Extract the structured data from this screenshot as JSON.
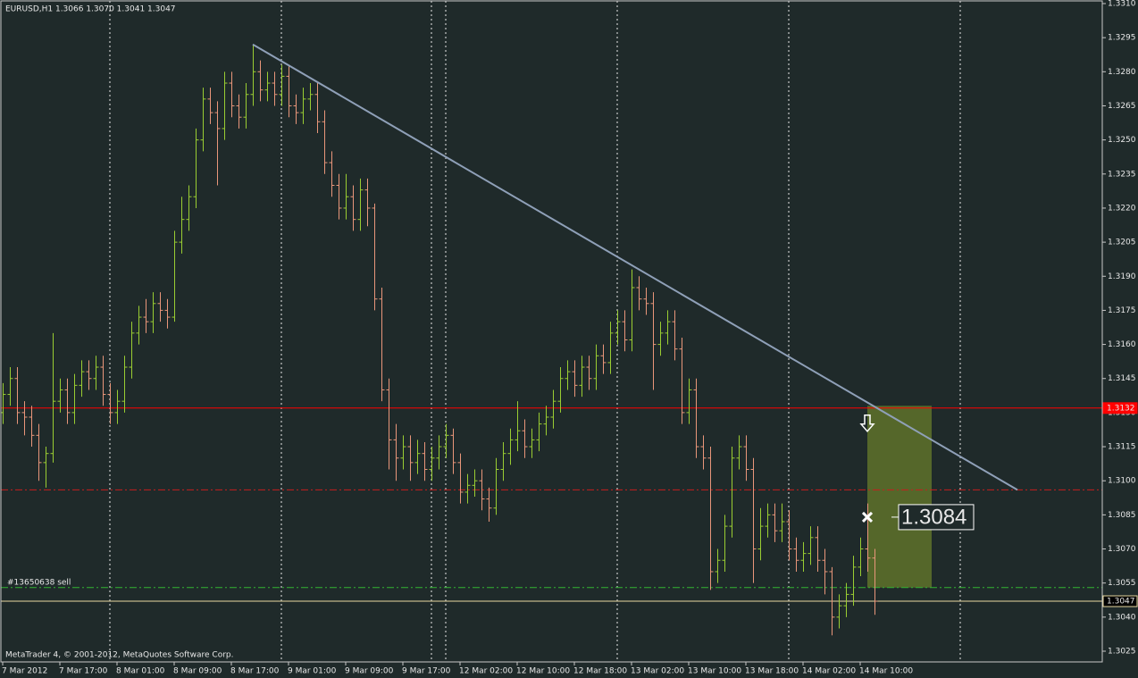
{
  "chart_data": {
    "type": "ohlc",
    "title": "EURUSD,H1  1.3066 1.3070 1.3041 1.3047",
    "footer": "MetaTrader 4, © 2001-2012, MetaQuotes Software Corp.",
    "up_color": "#9acd32",
    "down_color": "#e9967a",
    "grid_color": "#e8e8e8",
    "ylim": [
      1.3025,
      1.331
    ],
    "yticks": [
      {
        "value": 1.331,
        "label": "1.3310"
      },
      1.3295,
      {
        "value": 1.328,
        "label": "1.3280"
      },
      1.3265,
      {
        "value": 1.325,
        "label": "1.3250"
      },
      1.3235,
      {
        "value": 1.322,
        "label": "1.3220"
      },
      1.3205,
      {
        "value": 1.319,
        "label": "1.3190"
      },
      1.3175,
      {
        "value": 1.316,
        "label": "1.3160"
      },
      1.3145,
      {
        "value": 1.313,
        "label": "1.3130"
      },
      1.3115,
      {
        "value": 1.31,
        "label": "1.3100"
      },
      1.3085,
      {
        "value": 1.307,
        "label": "1.3070"
      },
      1.3055,
      {
        "value": 1.304,
        "label": "1.3040"
      },
      1.3025
    ],
    "xgrid": [
      15,
      39,
      60,
      62,
      86,
      110,
      134
    ],
    "categories": [
      "7 Mar 2012",
      null,
      null,
      null,
      null,
      null,
      null,
      null,
      "7 Mar 17:00",
      null,
      null,
      null,
      null,
      null,
      null,
      null,
      "8 Mar 01:00",
      null,
      null,
      null,
      null,
      null,
      null,
      null,
      "8 Mar 09:00",
      null,
      null,
      null,
      null,
      null,
      null,
      null,
      "8 Mar 17:00",
      null,
      null,
      null,
      null,
      null,
      null,
      null,
      "9 Mar 01:00",
      null,
      null,
      null,
      null,
      null,
      null,
      null,
      "9 Mar 09:00",
      null,
      null,
      null,
      null,
      null,
      null,
      null,
      "9 Mar 17:00",
      null,
      null,
      null,
      null,
      null,
      null,
      null,
      "12 Mar 02:00",
      null,
      null,
      null,
      null,
      null,
      null,
      null,
      "12 Mar 10:00",
      null,
      null,
      null,
      null,
      null,
      null,
      null,
      "12 Mar 18:00",
      null,
      null,
      null,
      null,
      null,
      null,
      null,
      "13 Mar 02:00",
      null,
      null,
      null,
      null,
      null,
      null,
      null,
      "13 Mar 10:00",
      null,
      null,
      null,
      null,
      null,
      null,
      null,
      "13 Mar 18:00",
      null,
      null,
      null,
      null,
      null,
      null,
      null,
      "14 Mar 02:00",
      null,
      null,
      null,
      null,
      null,
      null,
      null,
      "14 Mar 10:00",
      null,
      null
    ],
    "ohlc": [
      [
        1.313,
        1.3143,
        1.3125,
        1.3138
      ],
      [
        1.3138,
        1.315,
        1.3133,
        1.3145
      ],
      [
        1.3145,
        1.315,
        1.3125,
        1.313
      ],
      [
        1.313,
        1.3135,
        1.312,
        1.3128
      ],
      [
        1.3128,
        1.3133,
        1.3115,
        1.312
      ],
      [
        1.312,
        1.3125,
        1.31,
        1.3108
      ],
      [
        1.3108,
        1.3115,
        1.3097,
        1.3112
      ],
      [
        1.3112,
        1.3165,
        1.3108,
        1.3135
      ],
      [
        1.3135,
        1.3145,
        1.313,
        1.314
      ],
      [
        1.314,
        1.3145,
        1.3125,
        1.313
      ],
      [
        1.313,
        1.3147,
        1.3125,
        1.3142
      ],
      [
        1.3142,
        1.3153,
        1.3137,
        1.3148
      ],
      [
        1.3148,
        1.3153,
        1.314,
        1.3145
      ],
      [
        1.3145,
        1.3155,
        1.314,
        1.315
      ],
      [
        1.315,
        1.3155,
        1.3133,
        1.3138
      ],
      [
        1.3138,
        1.3143,
        1.3125,
        1.313
      ],
      [
        1.313,
        1.314,
        1.3125,
        1.3135
      ],
      [
        1.3135,
        1.3155,
        1.313,
        1.315
      ],
      [
        1.315,
        1.317,
        1.3145,
        1.3165
      ],
      [
        1.3165,
        1.3177,
        1.316,
        1.3172
      ],
      [
        1.3172,
        1.318,
        1.3165,
        1.317
      ],
      [
        1.317,
        1.3183,
        1.3165,
        1.3178
      ],
      [
        1.3178,
        1.3183,
        1.317,
        1.3175
      ],
      [
        1.3175,
        1.318,
        1.3167,
        1.3172
      ],
      [
        1.3172,
        1.321,
        1.317,
        1.3205
      ],
      [
        1.3205,
        1.3225,
        1.32,
        1.3215
      ],
      [
        1.3215,
        1.323,
        1.321,
        1.3225
      ],
      [
        1.3225,
        1.3255,
        1.322,
        1.325
      ],
      [
        1.325,
        1.3273,
        1.3245,
        1.3268
      ],
      [
        1.3268,
        1.3273,
        1.3257,
        1.3262
      ],
      [
        1.3262,
        1.3267,
        1.323,
        1.3255
      ],
      [
        1.3255,
        1.328,
        1.325,
        1.3275
      ],
      [
        1.3275,
        1.328,
        1.326,
        1.3265
      ],
      [
        1.3265,
        1.327,
        1.3255,
        1.326
      ],
      [
        1.326,
        1.3275,
        1.3255,
        1.327
      ],
      [
        1.327,
        1.3292,
        1.3265,
        1.328
      ],
      [
        1.328,
        1.3285,
        1.3267,
        1.3272
      ],
      [
        1.3272,
        1.328,
        1.3267,
        1.3275
      ],
      [
        1.3275,
        1.328,
        1.3265,
        1.327
      ],
      [
        1.327,
        1.3283,
        1.3265,
        1.3278
      ],
      [
        1.3278,
        1.3283,
        1.326,
        1.3265
      ],
      [
        1.3265,
        1.327,
        1.3257,
        1.3262
      ],
      [
        1.3262,
        1.3273,
        1.3257,
        1.3268
      ],
      [
        1.3268,
        1.3275,
        1.3263,
        1.327
      ],
      [
        1.327,
        1.3275,
        1.3253,
        1.3258
      ],
      [
        1.3258,
        1.3263,
        1.3235,
        1.324
      ],
      [
        1.324,
        1.3245,
        1.3225,
        1.323
      ],
      [
        1.323,
        1.3235,
        1.3215,
        1.322
      ],
      [
        1.322,
        1.3235,
        1.3215,
        1.3225
      ],
      [
        1.3225,
        1.323,
        1.321,
        1.3215
      ],
      [
        1.3215,
        1.3233,
        1.321,
        1.3228
      ],
      [
        1.3228,
        1.3233,
        1.3212,
        1.322
      ],
      [
        1.322,
        1.3222,
        1.3175,
        1.318
      ],
      [
        1.318,
        1.3185,
        1.3135,
        1.314
      ],
      [
        1.314,
        1.3145,
        1.3105,
        1.3118
      ],
      [
        1.3118,
        1.3125,
        1.31,
        1.311
      ],
      [
        1.311,
        1.312,
        1.3105,
        1.3115
      ],
      [
        1.3115,
        1.312,
        1.31,
        1.3108
      ],
      [
        1.3108,
        1.3118,
        1.3103,
        1.3112
      ],
      [
        1.3112,
        1.3117,
        1.31,
        1.3105
      ],
      [
        1.3105,
        1.3115,
        1.31,
        1.311
      ],
      [
        1.311,
        1.312,
        1.3105,
        1.3115
      ],
      [
        1.3115,
        1.3125,
        1.311,
        1.312
      ],
      [
        1.312,
        1.3123,
        1.3103,
        1.3108
      ],
      [
        1.3108,
        1.3112,
        1.309,
        1.3095
      ],
      [
        1.3095,
        1.3103,
        1.309,
        1.3098
      ],
      [
        1.3098,
        1.3105,
        1.3093,
        1.31
      ],
      [
        1.31,
        1.3105,
        1.3087,
        1.3092
      ],
      [
        1.3092,
        1.3097,
        1.3082,
        1.3088
      ],
      [
        1.3088,
        1.311,
        1.3085,
        1.3105
      ],
      [
        1.3105,
        1.3117,
        1.31,
        1.3112
      ],
      [
        1.3112,
        1.3123,
        1.3107,
        1.3118
      ],
      [
        1.3118,
        1.3135,
        1.3113,
        1.3122
      ],
      [
        1.3122,
        1.3127,
        1.311,
        1.3115
      ],
      [
        1.3115,
        1.3123,
        1.311,
        1.3118
      ],
      [
        1.3118,
        1.313,
        1.3113,
        1.3125
      ],
      [
        1.3125,
        1.3133,
        1.312,
        1.3128
      ],
      [
        1.3128,
        1.314,
        1.3123,
        1.3135
      ],
      [
        1.3135,
        1.315,
        1.313,
        1.3145
      ],
      [
        1.3145,
        1.3153,
        1.314,
        1.3148
      ],
      [
        1.3148,
        1.3153,
        1.3137,
        1.3142
      ],
      [
        1.3142,
        1.3155,
        1.3137,
        1.315
      ],
      [
        1.315,
        1.3155,
        1.314,
        1.3145
      ],
      [
        1.3145,
        1.316,
        1.314,
        1.3155
      ],
      [
        1.3155,
        1.316,
        1.3147,
        1.3152
      ],
      [
        1.3152,
        1.317,
        1.3147,
        1.3165
      ],
      [
        1.3165,
        1.3175,
        1.316,
        1.317
      ],
      [
        1.317,
        1.3175,
        1.3157,
        1.3162
      ],
      [
        1.3162,
        1.3193,
        1.3157,
        1.3185
      ],
      [
        1.3185,
        1.319,
        1.3175,
        1.318
      ],
      [
        1.318,
        1.3185,
        1.3173,
        1.3178
      ],
      [
        1.3178,
        1.3183,
        1.314,
        1.316
      ],
      [
        1.316,
        1.317,
        1.3155,
        1.3165
      ],
      [
        1.3165,
        1.3175,
        1.316,
        1.317
      ],
      [
        1.317,
        1.3175,
        1.3153,
        1.3158
      ],
      [
        1.3158,
        1.3163,
        1.3125,
        1.313
      ],
      [
        1.313,
        1.3145,
        1.3125,
        1.314
      ],
      [
        1.314,
        1.3145,
        1.311,
        1.3115
      ],
      [
        1.3115,
        1.312,
        1.3105,
        1.311
      ],
      [
        1.311,
        1.3115,
        1.3052,
        1.306
      ],
      [
        1.306,
        1.307,
        1.3055,
        1.3065
      ],
      [
        1.3065,
        1.3085,
        1.306,
        1.308
      ],
      [
        1.308,
        1.3115,
        1.3075,
        1.311
      ],
      [
        1.311,
        1.312,
        1.3105,
        1.3115
      ],
      [
        1.3115,
        1.312,
        1.31,
        1.3105
      ],
      [
        1.3105,
        1.311,
        1.3055,
        1.307
      ],
      [
        1.307,
        1.3088,
        1.3065,
        1.308
      ],
      [
        1.308,
        1.309,
        1.3075,
        1.3085
      ],
      [
        1.3085,
        1.309,
        1.3073,
        1.3078
      ],
      [
        1.3078,
        1.309,
        1.3073,
        1.3082
      ],
      [
        1.3082,
        1.3087,
        1.3065,
        1.307
      ],
      [
        1.307,
        1.3075,
        1.306,
        1.3065
      ],
      [
        1.3065,
        1.3073,
        1.306,
        1.3068
      ],
      [
        1.3068,
        1.308,
        1.3063,
        1.3075
      ],
      [
        1.3075,
        1.308,
        1.306,
        1.3065
      ],
      [
        1.3065,
        1.307,
        1.305,
        1.306
      ],
      [
        1.306,
        1.3062,
        1.3032,
        1.304
      ],
      [
        1.304,
        1.305,
        1.3035,
        1.3045
      ],
      [
        1.3045,
        1.3055,
        1.304,
        1.305
      ],
      [
        1.305,
        1.3067,
        1.3045,
        1.3062
      ],
      [
        1.3062,
        1.3075,
        1.3058,
        1.307
      ],
      [
        1.307,
        1.309,
        1.306,
        1.3066
      ],
      [
        1.3066,
        1.307,
        1.3041,
        1.3047
      ]
    ],
    "levels": [
      {
        "value": 1.3132,
        "label": "1.3132",
        "color": "#ff0000",
        "style": "solid"
      },
      {
        "value": 1.3096,
        "color": "#c81e1e",
        "style": "dashdot"
      },
      {
        "value": 1.3053,
        "color": "#32b432",
        "style": "dashdot",
        "text": "#13650638 sell"
      },
      {
        "value": 1.3047,
        "label": "1.3047",
        "color": "#e8d8a0",
        "style": "solid"
      }
    ],
    "trendline": {
      "x": [
        35,
        142
      ],
      "values": [
        1.3292,
        1.3096
      ],
      "color": "#8fa0b8"
    },
    "zone": {
      "x": [
        121,
        130
      ],
      "values": [
        1.3133,
        1.3053
      ],
      "color": "#55672a"
    },
    "arrow": {
      "x": 121,
      "value": 1.3132
    },
    "marker": {
      "x": 121,
      "value": 1.3084,
      "label": "1.3084"
    }
  }
}
